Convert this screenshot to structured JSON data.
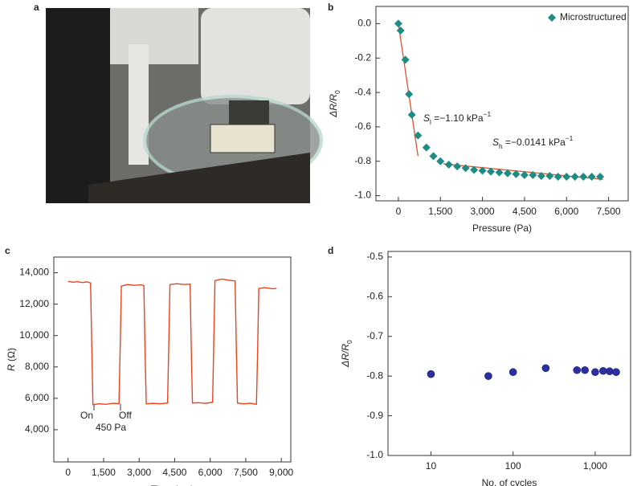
{
  "chart_data": [
    {
      "label": "a",
      "type": "photo"
    },
    {
      "label": "b",
      "type": "scatter",
      "x": [
        0,
        80,
        250,
        380,
        480,
        700,
        1000,
        1250,
        1500,
        1800,
        2100,
        2400,
        2700,
        3000,
        3300,
        3600,
        3900,
        4200,
        4500,
        4800,
        5100,
        5400,
        5700,
        6000,
        6300,
        6600,
        6900,
        7200
      ],
      "series": [
        {
          "name": "Microstructured",
          "color": "#1e8c82",
          "marker": "diamond",
          "values": [
            0,
            -0.04,
            -0.21,
            -0.41,
            -0.53,
            -0.65,
            -0.72,
            -0.77,
            -0.8,
            -0.82,
            -0.83,
            -0.84,
            -0.85,
            -0.855,
            -0.86,
            -0.865,
            -0.87,
            -0.875,
            -0.88,
            -0.88,
            -0.885,
            -0.885,
            -0.89,
            -0.89,
            -0.89,
            -0.89,
            -0.89,
            -0.89
          ]
        }
      ],
      "fit_lines": [
        {
          "color": "#e0502a",
          "x": [
            0,
            700
          ],
          "values": [
            0,
            -0.77
          ]
        },
        {
          "color": "#e0502a",
          "x": [
            1600,
            7300
          ],
          "values": [
            -0.815,
            -0.905
          ]
        }
      ],
      "annotations": [
        {
          "text": "S",
          "sub": "l",
          "rest": " =−1.10 kPa",
          "sup": "−1"
        },
        {
          "text": "S",
          "sub": "h",
          "rest": " =−0.0141 kPa",
          "sup": "−1"
        }
      ],
      "xlabel": "Pressure (Pa)",
      "ylabel": {
        "text": "ΔR/R",
        "sub": "0"
      },
      "xlim": [
        -800,
        8200
      ],
      "ylim": [
        -1.03,
        0.1
      ],
      "xticks": [
        0,
        {
          "value": 1500,
          "label": "1,500"
        },
        {
          "value": 3000,
          "label": "3,000"
        },
        {
          "value": 4500,
          "label": "4,500"
        },
        {
          "value": 6000,
          "label": "6,000"
        },
        {
          "value": 7500,
          "label": "7,500"
        }
      ],
      "yticks": [
        {
          "value": 0,
          "label": "0.0"
        },
        -0.2,
        -0.4,
        -0.6,
        -0.8,
        {
          "value": -1,
          "label": "-1.0"
        }
      ],
      "legend": "upper right"
    },
    {
      "label": "c",
      "type": "line",
      "color": "#e8441c",
      "x": [
        0,
        200,
        400,
        600,
        800,
        950,
        1000,
        1050,
        1300,
        1600,
        1900,
        2150,
        2200,
        2250,
        2500,
        2800,
        3100,
        3200,
        3250,
        3300,
        3600,
        3900,
        4200,
        4250,
        4300,
        4600,
        4900,
        5150,
        5200,
        5250,
        5500,
        5800,
        6100,
        6150,
        6200,
        6500,
        6800,
        7050,
        7100,
        7150,
        7400,
        7700,
        7950,
        8000,
        8050,
        8300,
        8600,
        8800
      ],
      "values": [
        13450,
        13400,
        13430,
        13380,
        13420,
        13350,
        9500,
        5600,
        5650,
        5620,
        5680,
        5660,
        9200,
        13150,
        13250,
        13200,
        13230,
        13180,
        9000,
        5650,
        5680,
        5650,
        5700,
        9300,
        13250,
        13300,
        13250,
        13280,
        9200,
        5700,
        5720,
        5680,
        5750,
        9500,
        13500,
        13600,
        13520,
        13480,
        9300,
        5700,
        5650,
        5680,
        5620,
        9000,
        13000,
        13050,
        12980,
        13000
      ],
      "annotations": [
        "On",
        "Off",
        "450 Pa"
      ],
      "xlabel": "Time (ms)",
      "ylabel": {
        "text": "R",
        "rest": " (Ω)"
      },
      "xlim": [
        -600,
        9400
      ],
      "ylim": [
        1950,
        15000
      ],
      "xticks": [
        0,
        {
          "value": 1500,
          "label": "1,500"
        },
        {
          "value": 3000,
          "label": "3,000"
        },
        {
          "value": 4500,
          "label": "4,500"
        },
        {
          "value": 6000,
          "label": "6,000"
        },
        {
          "value": 7500,
          "label": "7,500"
        },
        {
          "value": 9000,
          "label": "9,000"
        }
      ],
      "yticks": [
        {
          "value": 4000,
          "label": "4,000"
        },
        {
          "value": 6000,
          "label": "6,000"
        },
        {
          "value": 8000,
          "label": "8,000"
        },
        {
          "value": 10000,
          "label": "10,000"
        },
        {
          "value": 12000,
          "label": "12,000"
        },
        {
          "value": 14000,
          "label": "14,000"
        }
      ]
    },
    {
      "label": "d",
      "type": "scatter",
      "color": "#2b2fa0",
      "marker": "circle",
      "xscale": "log",
      "x": [
        10,
        50,
        100,
        250,
        600,
        750,
        1000,
        1250,
        1500,
        1800
      ],
      "values": [
        -0.795,
        -0.8,
        -0.79,
        -0.78,
        -0.785,
        -0.785,
        -0.79,
        -0.787,
        -0.788,
        -0.79
      ],
      "xlabel": "No. of cycles",
      "ylabel": {
        "text": "ΔR/R",
        "sub": "0"
      },
      "xlim": [
        3,
        2700
      ],
      "ylim": [
        -1,
        -0.486
      ],
      "xticks": [
        10,
        100,
        {
          "value": 1000,
          "label": "1,000"
        }
      ],
      "yticks": [
        -0.5,
        -0.6,
        -0.7,
        -0.8,
        -0.9,
        {
          "value": -1,
          "label": "-1.0"
        }
      ]
    }
  ]
}
